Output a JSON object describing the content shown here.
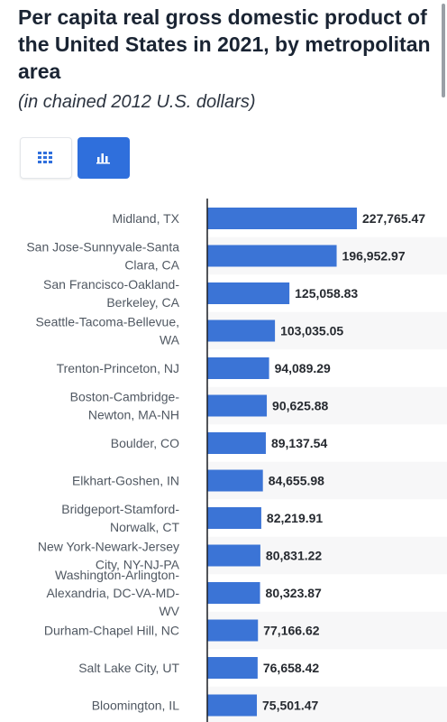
{
  "chart_data": {
    "type": "bar",
    "orientation": "horizontal",
    "title": "Per capita real gross domestic product of the United States in 2021, by metropolitan area",
    "subtitle": "(in chained 2012 U.S. dollars)",
    "categories": [
      "Midland, TX",
      "San Jose-Sunnyvale-Santa Clara, CA",
      "San Francisco-Oakland-Berkeley, CA",
      "Seattle-Tacoma-Bellevue, WA",
      "Trenton-Princeton, NJ",
      "Boston-Cambridge-Newton, MA-NH",
      "Boulder, CO",
      "Elkhart-Goshen, IN",
      "Bridgeport-Stamford-Norwalk, CT",
      "New York-Newark-Jersey City, NY-NJ-PA",
      "Washington-Arlington-Alexandria, DC-VA-MD-WV",
      "Durham-Chapel Hill, NC",
      "Salt Lake City, UT",
      "Bloomington, IL"
    ],
    "values": [
      227765.47,
      196952.97,
      125058.83,
      103035.05,
      94089.29,
      90625.88,
      89137.54,
      84655.98,
      82219.91,
      80831.22,
      80323.87,
      77166.62,
      76658.42,
      75501.47
    ],
    "value_labels": [
      "227,765.47",
      "196,952.97",
      "125,058.83",
      "103,035.05",
      "94,089.29",
      "90,625.88",
      "89,137.54",
      "84,655.98",
      "82,219.91",
      "80,831.22",
      "80,323.87",
      "77,166.62",
      "76,658.42",
      "75,501.47"
    ],
    "bar_color": "#3b74d6",
    "grid": false
  },
  "toolbar": {
    "table_icon": "grid-icon",
    "bar_icon": "bar-chart-icon",
    "active_color": "#2f6fdc"
  }
}
